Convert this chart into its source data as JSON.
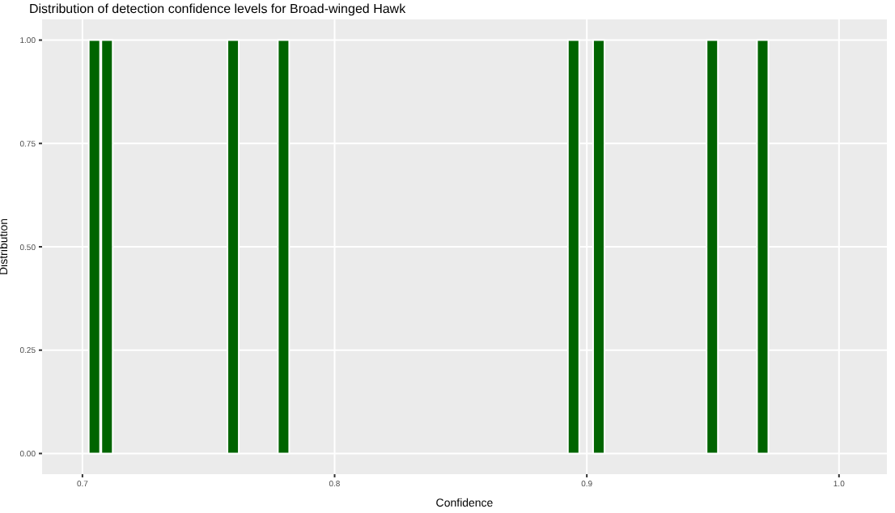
{
  "chart_data": {
    "type": "histogram",
    "title": "Distribution of detection confidence levels for Broad-winged Hawk",
    "xlabel": "Confidence",
    "ylabel": "Distribution",
    "bins": [
      0.7025,
      0.7075,
      0.7125,
      0.7175,
      0.7225,
      0.7275,
      0.7325,
      0.7375,
      0.7425,
      0.7475,
      0.7525,
      0.7575,
      0.7625,
      0.7675,
      0.7725,
      0.7775,
      0.7825,
      0.7875,
      0.7925,
      0.7975,
      0.8025,
      0.8075,
      0.8125,
      0.8175,
      0.8225,
      0.8275,
      0.8325,
      0.8375,
      0.8425,
      0.8475,
      0.8525,
      0.8575,
      0.8625,
      0.8675,
      0.8725,
      0.8775,
      0.8825,
      0.8875,
      0.8925,
      0.8975,
      0.9025,
      0.9075,
      0.9125,
      0.9175,
      0.9225,
      0.9275,
      0.9325,
      0.9375,
      0.9425,
      0.9475,
      0.9525,
      0.9575,
      0.9625,
      0.9675,
      0.9725
    ],
    "values": [
      1,
      1,
      0,
      0,
      0,
      0,
      0,
      0,
      0,
      0,
      0,
      1,
      0,
      0,
      0,
      1,
      0,
      0,
      0,
      0,
      0,
      0,
      0,
      0,
      0,
      0,
      0,
      0,
      0,
      0,
      0,
      0,
      0,
      0,
      0,
      0,
      0,
      0,
      1,
      0,
      1,
      0,
      0,
      0,
      0,
      0,
      0,
      0,
      0,
      1,
      0,
      0,
      0,
      1
    ],
    "color": "#006400",
    "xlim": [
      0.684,
      1.019
    ],
    "xticks": [
      0.7,
      0.8,
      0.9,
      {
        "value": 1,
        "label": "1.0"
      }
    ],
    "ylim": [
      -0.05,
      1.05
    ],
    "yticks": [
      {
        "value": 0,
        "label": "0.00"
      },
      {
        "value": 0.25,
        "label": "0.25"
      },
      {
        "value": 0.5,
        "label": "0.50"
      },
      {
        "value": 0.75,
        "label": "0.75"
      },
      {
        "value": 1,
        "label": "1.00"
      }
    ],
    "grid": true
  }
}
